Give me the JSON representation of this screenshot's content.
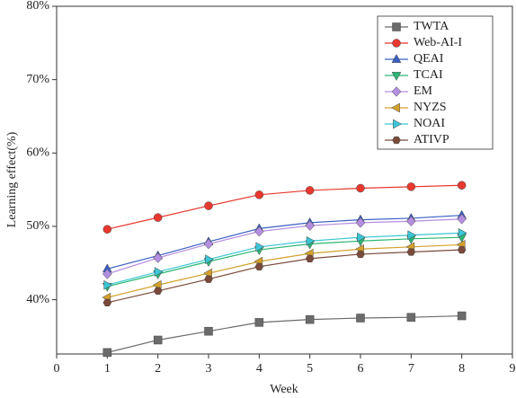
{
  "chart_data": {
    "type": "line",
    "x_label": "Week",
    "y_label": "Learning effect(%)",
    "x": [
      1,
      2,
      3,
      4,
      5,
      6,
      7,
      8
    ],
    "xlim": [
      0,
      9
    ],
    "xticks": [
      0,
      1,
      2,
      3,
      4,
      5,
      6,
      7,
      8,
      9
    ],
    "ylim": [
      32.6,
      80
    ],
    "yticks": [
      {
        "value": 40,
        "label": "40%"
      },
      {
        "value": 50,
        "label": "50%"
      },
      {
        "value": 60,
        "label": "60%"
      },
      {
        "value": 70,
        "label": "70%"
      },
      {
        "value": 80,
        "label": "80%"
      }
    ],
    "legend": "upper right",
    "series": [
      {
        "name": "TWTA",
        "color": "#6b6b6b",
        "marker": "square",
        "values": [
          32.8,
          34.5,
          35.7,
          36.9,
          37.3,
          37.5,
          37.6,
          37.8
        ]
      },
      {
        "name": "Web-AI-I",
        "color": "#e8382f",
        "marker": "circle",
        "values": [
          49.6,
          51.2,
          52.8,
          54.3,
          54.9,
          55.2,
          55.4,
          55.6
        ]
      },
      {
        "name": "QEAI",
        "color": "#3a60c4",
        "marker": "triangle-up",
        "values": [
          44.2,
          46.0,
          47.9,
          49.7,
          50.5,
          50.9,
          51.1,
          51.5
        ]
      },
      {
        "name": "TCAI",
        "color": "#2bb673",
        "marker": "triangle-down",
        "values": [
          41.8,
          43.5,
          45.2,
          46.8,
          47.6,
          48.0,
          48.3,
          48.5
        ]
      },
      {
        "name": "EM",
        "color": "#b48ee0",
        "marker": "diamond",
        "values": [
          43.5,
          45.7,
          47.6,
          49.3,
          50.1,
          50.5,
          50.7,
          51.0
        ]
      },
      {
        "name": "NYZS",
        "color": "#d4a12a",
        "marker": "triangle-left",
        "values": [
          40.3,
          42.0,
          43.6,
          45.2,
          46.3,
          46.9,
          47.2,
          47.5
        ]
      },
      {
        "name": "NOAI",
        "color": "#3ac6d6",
        "marker": "triangle-right",
        "values": [
          42.0,
          43.8,
          45.5,
          47.2,
          48.0,
          48.5,
          48.8,
          49.1
        ]
      },
      {
        "name": "ATIVP",
        "color": "#7a4a3a",
        "marker": "hexagon",
        "values": [
          39.6,
          41.2,
          42.8,
          44.5,
          45.6,
          46.2,
          46.5,
          46.8
        ]
      }
    ]
  }
}
